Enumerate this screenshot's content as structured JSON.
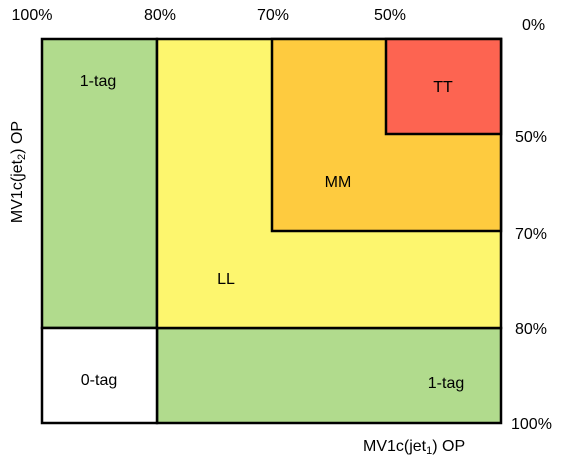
{
  "x_axis": {
    "title_main": "MV1c(jet",
    "title_sub": "1",
    "title_end": ") OP",
    "ticks": [
      "100%",
      "80%",
      "70%",
      "50%"
    ]
  },
  "y_axis": {
    "title_main": "MV1c(jet",
    "title_sub": "2",
    "title_end": ") OP",
    "ticks": [
      "0%",
      "50%",
      "70%",
      "80%",
      "100%"
    ]
  },
  "regions": {
    "tag1_left": "1-tag",
    "tag1_bottom": "1-tag",
    "tag0": "0-tag",
    "ll": "LL",
    "mm": "MM",
    "tt": "TT"
  },
  "colors": {
    "green": "#b1db8d",
    "yellow": "#fdf66e",
    "orange": "#fecb3f",
    "red": "#fd6451",
    "white": "#ffffff"
  }
}
